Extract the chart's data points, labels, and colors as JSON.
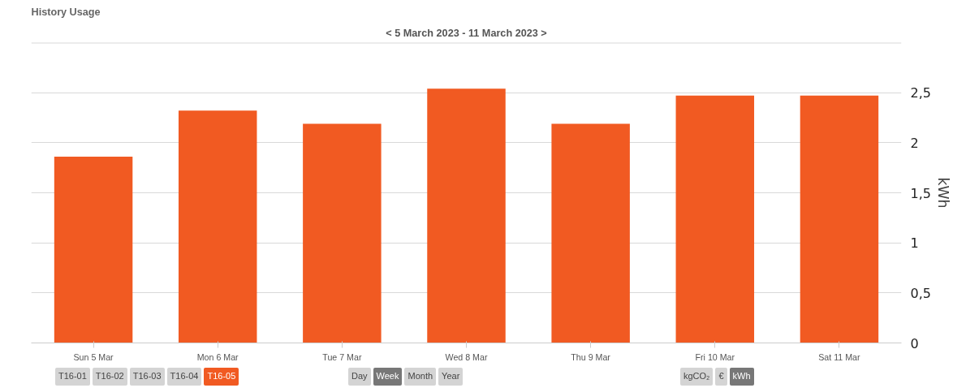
{
  "chart_data": {
    "type": "bar",
    "title": "History Usage",
    "subtitle": "< 5 March 2023 - 11 March 2023 >",
    "categories": [
      "Sun 5 Mar",
      "Mon 6 Mar",
      "Tue 7 Mar",
      "Wed 8 Mar",
      "Thu 9 Mar",
      "Fri 10 Mar",
      "Sat 11 Mar"
    ],
    "values": [
      1.86,
      2.32,
      2.19,
      2.54,
      2.19,
      2.47,
      2.47
    ],
    "color": "#f15a22",
    "ylabel": "kWh",
    "ylim": [
      0,
      3
    ],
    "yticks": [
      {
        "value": 0,
        "label": "0"
      },
      {
        "value": 0.5,
        "label": "0,5"
      },
      {
        "value": 1,
        "label": "1"
      },
      {
        "value": 1.5,
        "label": "1,5"
      },
      {
        "value": 2,
        "label": "2"
      },
      {
        "value": 2.5,
        "label": "2,5"
      },
      {
        "value": 3,
        "label": null
      }
    ],
    "grid": "y",
    "annotations": [
      "T16-01",
      "T16-02",
      "T16-03",
      "T16-04",
      "T16-05",
      "Day",
      "Week",
      "Month",
      "Year",
      "kgCO₂",
      "€",
      "kWh"
    ]
  }
}
